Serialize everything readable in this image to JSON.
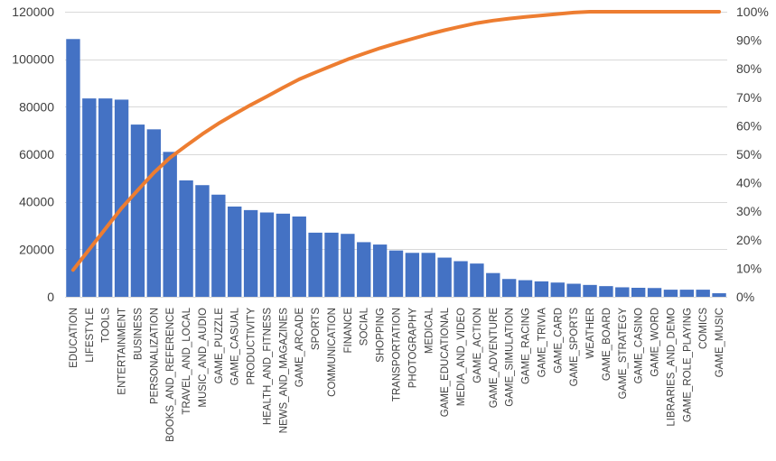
{
  "chart_data": {
    "type": "bar",
    "title": "",
    "xlabel": "",
    "ylabel": "",
    "ylim": [
      0,
      120000
    ],
    "y_ticks": [
      0,
      20000,
      40000,
      60000,
      80000,
      100000,
      120000
    ],
    "y2lim": [
      0,
      100
    ],
    "y2_ticks": [
      "0%",
      "10%",
      "20%",
      "30%",
      "40%",
      "50%",
      "60%",
      "70%",
      "80%",
      "90%",
      "100%"
    ],
    "grid": true,
    "legend": "none",
    "colors": {
      "bar": "#4472C4",
      "line": "#ED7D31",
      "grid": "#D9D9D9"
    },
    "categories": [
      "EDUCATION",
      "LIFESTYLE",
      "TOOLS",
      "ENTERTAINMENT",
      "BUSINESS",
      "PERSONALIZATION",
      "BOOKS_AND_REFERENCE",
      "TRAVEL_AND_LOCAL",
      "MUSIC_AND_AUDIO",
      "GAME_PUZZLE",
      "GAME_CASUAL",
      "PRODUCTIVITY",
      "HEALTH_AND_FITNESS",
      "NEWS_AND_MAGAZINES",
      "GAME_ARCADE",
      "SPORTS",
      "COMMUNICATION",
      "FINANCE",
      "SOCIAL",
      "SHOPPING",
      "TRANSPORTATION",
      "PHOTOGRAPHY",
      "MEDICAL",
      "GAME_EDUCATIONAL",
      "MEDIA_AND_VIDEO",
      "GAME_ACTION",
      "GAME_ADVENTURE",
      "GAME_SIMULATION",
      "GAME_RACING",
      "GAME_TRIVIA",
      "GAME_CARD",
      "GAME_SPORTS",
      "WEATHER",
      "GAME_BOARD",
      "GAME_STRATEGY",
      "GAME_CASINO",
      "GAME_WORD",
      "LIBRARIES_AND_DEMO",
      "GAME_ROLE_PLAYING",
      "COMICS",
      "GAME_MUSIC"
    ],
    "series": [
      {
        "type": "bar",
        "axis": "primary",
        "values": [
          108500,
          83500,
          83500,
          83000,
          72500,
          70500,
          61000,
          49000,
          47000,
          43000,
          38000,
          36500,
          35500,
          35000,
          33800,
          27000,
          27000,
          26500,
          23000,
          22000,
          19500,
          18500,
          18500,
          16500,
          15000,
          14000,
          10000,
          7500,
          7000,
          6500,
          6000,
          5500,
          5000,
          4500,
          4000,
          3800,
          3700,
          3000,
          3000,
          3000,
          1500
        ]
      },
      {
        "type": "line",
        "axis": "secondary",
        "unit": "%",
        "values": [
          9.4,
          16.6,
          23.9,
          31.1,
          37.4,
          43.5,
          48.8,
          53.0,
          57.1,
          60.8,
          64.1,
          67.3,
          70.3,
          73.4,
          76.3,
          78.7,
          81.0,
          83.3,
          85.3,
          87.2,
          88.9,
          90.5,
          92.1,
          93.5,
          94.8,
          96.0,
          96.9,
          97.6,
          98.2,
          98.7,
          99.2,
          99.7,
          100.1,
          100.5,
          100.9,
          101.2,
          101.5,
          101.8,
          102.1,
          102.3,
          102.5
        ]
      }
    ]
  }
}
